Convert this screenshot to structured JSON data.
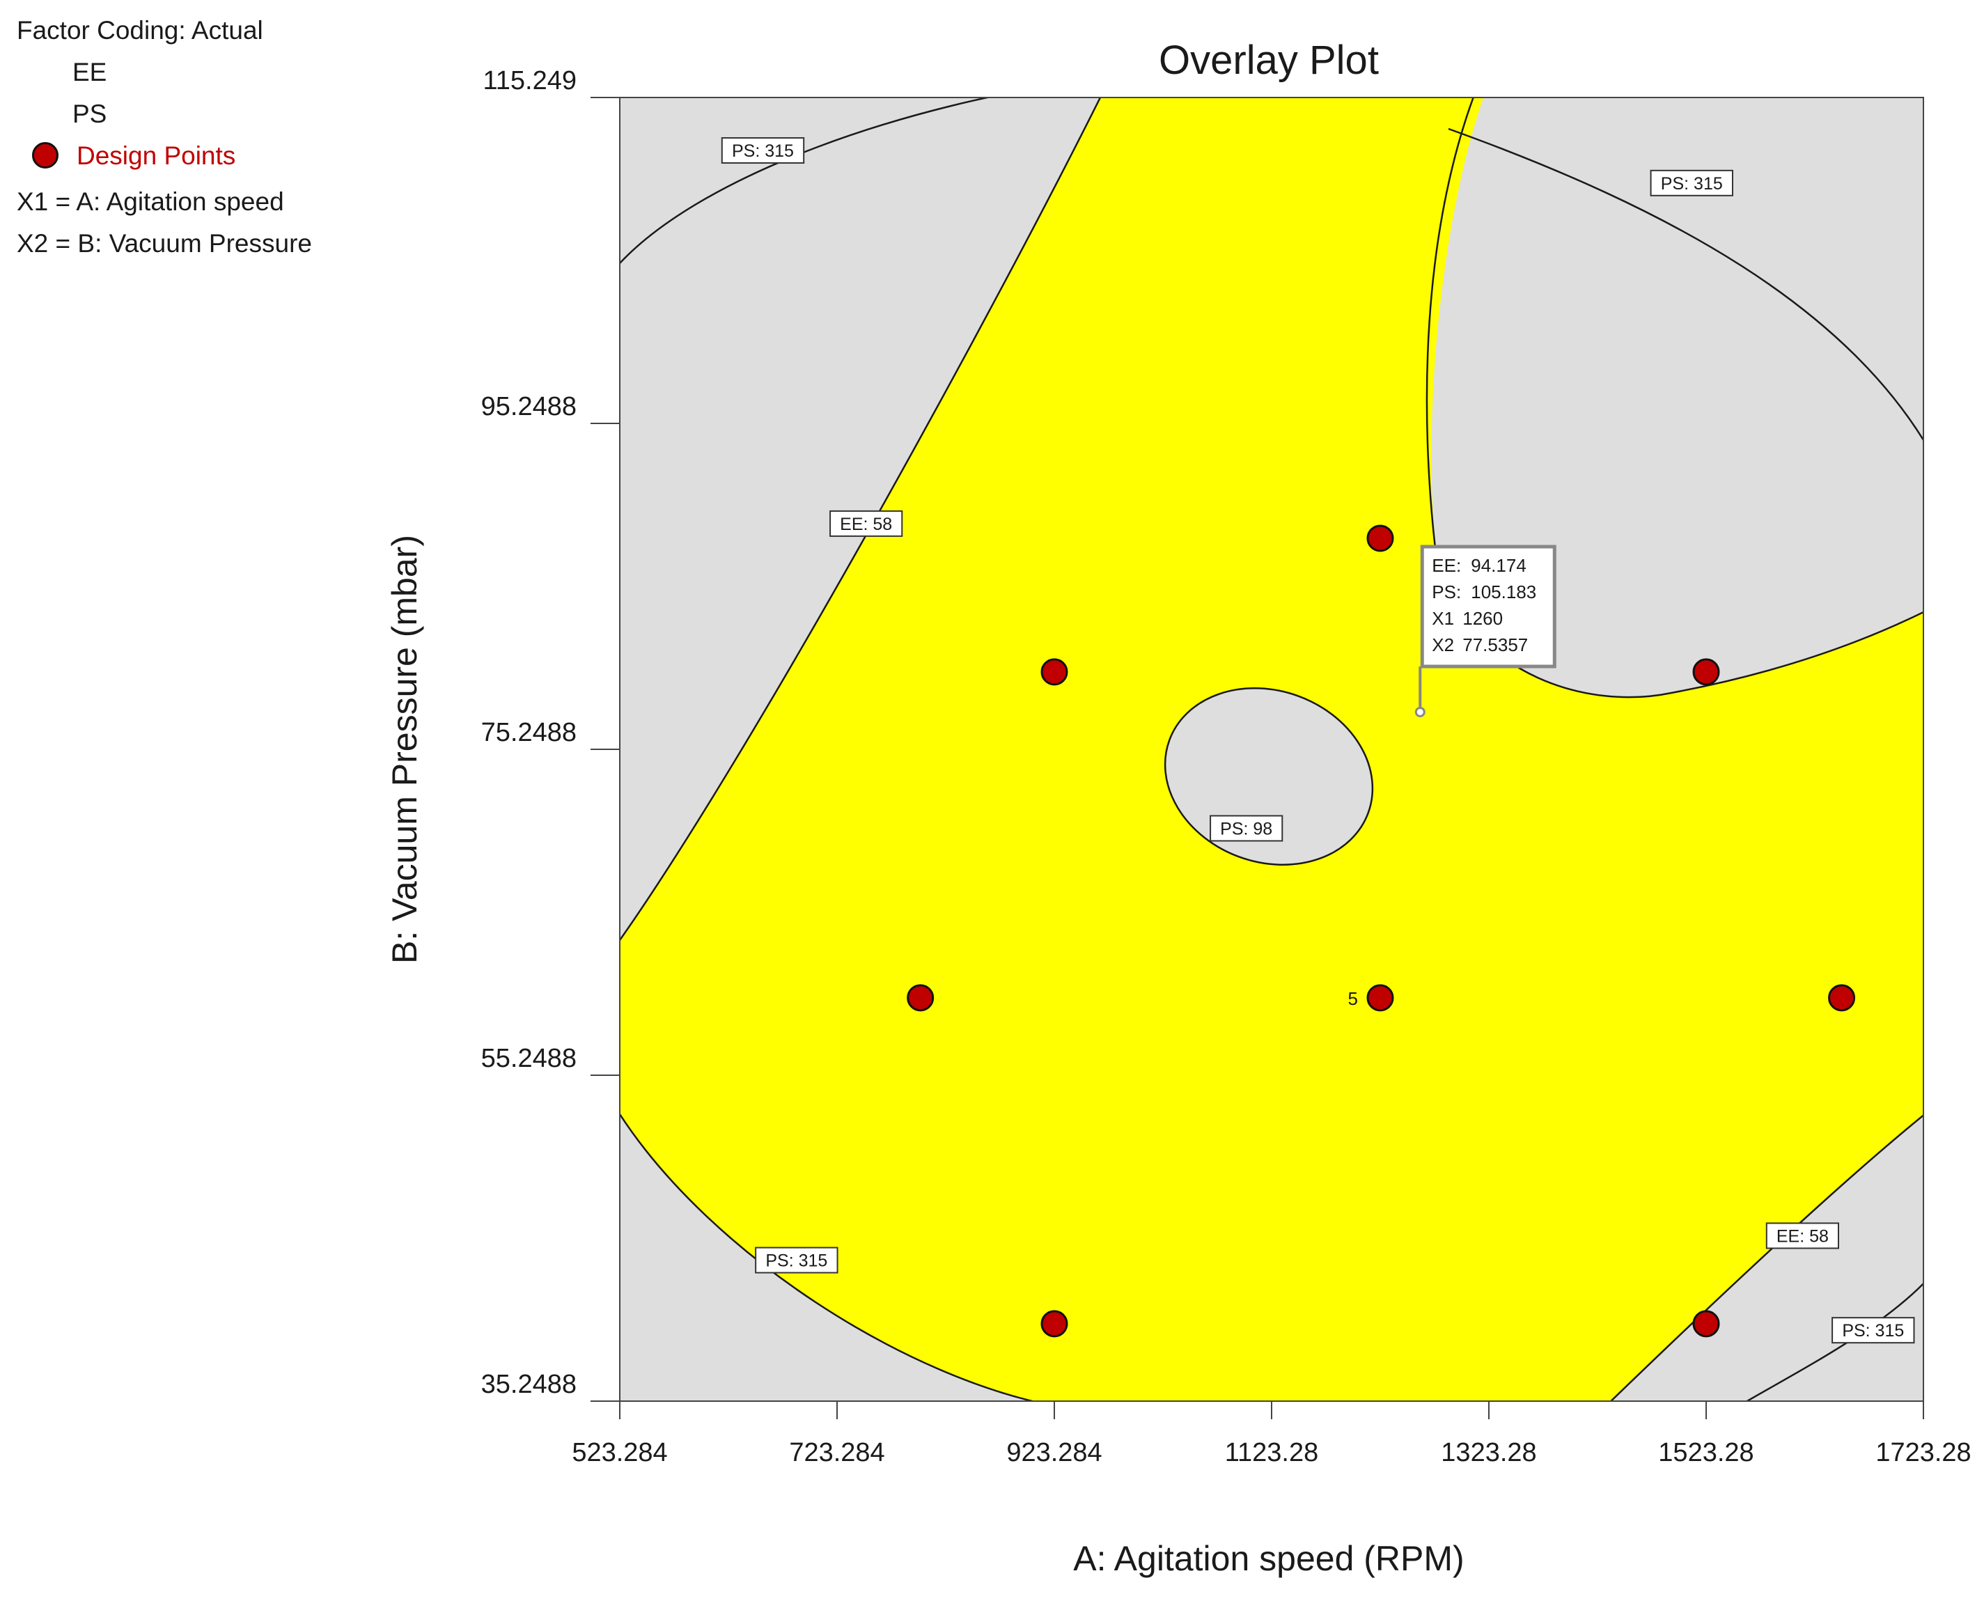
{
  "legend": {
    "factor_coding": "Factor Coding: Actual",
    "ee": "EE",
    "ps": "PS",
    "design_points": "Design Points",
    "x1": "X1 = A: Agitation speed",
    "x2": "X2 = B: Vacuum Pressure"
  },
  "colors": {
    "feasible": "#ffff00",
    "infeasible": "#dedede",
    "design_point": "#c00000",
    "contour": "#1a1a1a"
  },
  "chart_data": {
    "type": "overlay contour",
    "title": "Overlay Plot",
    "xlabel": "A: Agitation speed (RPM)",
    "ylabel": "B: Vacuum Pressure (mbar)",
    "xlim": [
      523.284,
      1723.28
    ],
    "ylim": [
      35.2488,
      115.249
    ],
    "x_ticks": [
      523.284,
      723.284,
      923.284,
      1123.28,
      1323.28,
      1523.28,
      1723.28
    ],
    "x_tick_labels": [
      "523.284",
      "723.284",
      "923.284",
      "1123.28",
      "1323.28",
      "1523.28",
      "1723.28"
    ],
    "y_ticks": [
      35.2488,
      55.2488,
      75.2488,
      95.2488,
      115.249
    ],
    "y_tick_labels": [
      "35.2488",
      "55.2488",
      "75.2488",
      "95.2488",
      "115.249"
    ],
    "design_points": [
      {
        "x": 1223.28,
        "y": 88.2
      },
      {
        "x": 923.284,
        "y": 80.0
      },
      {
        "x": 1523.28,
        "y": 80.0
      },
      {
        "x": 800.0,
        "y": 60.0
      },
      {
        "x": 1223.28,
        "y": 60.0,
        "label": "5"
      },
      {
        "x": 1648.0,
        "y": 60.0
      },
      {
        "x": 923.284,
        "y": 40.0
      },
      {
        "x": 1523.28,
        "y": 40.0
      }
    ],
    "contour_labels": [
      {
        "text": "PS: 315",
        "x": 655,
        "y": 112.0
      },
      {
        "text": "PS: 315",
        "x": 1510,
        "y": 110.0
      },
      {
        "text": "EE: 58",
        "x": 750,
        "y": 89.1
      },
      {
        "text": "PS: 98",
        "x": 1100,
        "y": 70.4
      },
      {
        "text": "PS: 315",
        "x": 686,
        "y": 43.9
      },
      {
        "text": "EE: 58",
        "x": 1612,
        "y": 45.4
      },
      {
        "text": "PS: 315",
        "x": 1677,
        "y": 39.6
      }
    ],
    "annotation": {
      "lines": [
        {
          "key": "EE:",
          "value": "94.174"
        },
        {
          "key": "PS:",
          "value": "105.183"
        },
        {
          "key": "X1",
          "value": "1260"
        },
        {
          "key": "X2",
          "value": "77.5357"
        }
      ],
      "point": {
        "x": 1260,
        "y": 77.5357
      }
    }
  }
}
